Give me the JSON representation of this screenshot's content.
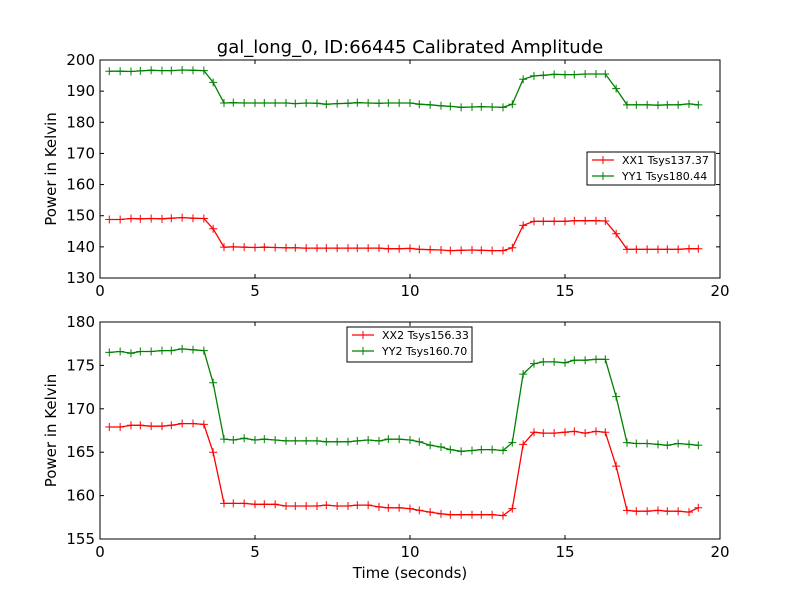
{
  "chart_data": [
    {
      "type": "line",
      "title": "gal_long_0, ID:66445 Calibrated Amplitude",
      "xlabel": "",
      "ylabel": "Power in Kelvin",
      "xlim": [
        0,
        20
      ],
      "ylim": [
        130,
        200
      ],
      "xticks": [
        "0",
        "5",
        "10",
        "15",
        "20"
      ],
      "yticks": [
        "130",
        "140",
        "150",
        "160",
        "170",
        "180",
        "190",
        "200"
      ],
      "legend_position": "right",
      "series": [
        {
          "name": "XX1 Tsys137.37",
          "color": "#ff0000",
          "x": [
            0.3,
            0.65,
            1.0,
            1.3,
            1.65,
            2.0,
            2.3,
            2.65,
            3.0,
            3.35,
            3.65,
            4.0,
            4.3,
            4.65,
            5.0,
            5.3,
            5.65,
            6.0,
            6.3,
            6.65,
            7.0,
            7.3,
            7.65,
            8.0,
            8.3,
            8.65,
            9.0,
            9.3,
            9.65,
            10.0,
            10.3,
            10.65,
            11.0,
            11.3,
            11.65,
            12.0,
            12.3,
            12.65,
            13.0,
            13.3,
            13.65,
            14.0,
            14.3,
            14.65,
            15.0,
            15.3,
            15.65,
            16.0,
            16.3,
            16.65,
            17.0,
            17.3,
            17.65,
            18.0,
            18.3,
            18.65,
            19.0,
            19.3
          ],
          "values": [
            148.8,
            148.8,
            149.1,
            149.0,
            149.1,
            149.0,
            149.2,
            149.4,
            149.2,
            149.1,
            145.8,
            139.9,
            140.0,
            139.9,
            139.8,
            139.9,
            139.8,
            139.7,
            139.7,
            139.6,
            139.6,
            139.6,
            139.6,
            139.6,
            139.6,
            139.6,
            139.6,
            139.4,
            139.4,
            139.5,
            139.2,
            139.1,
            139.0,
            138.8,
            138.9,
            139.0,
            138.9,
            138.8,
            138.8,
            139.7,
            146.9,
            148.2,
            148.2,
            148.2,
            148.2,
            148.4,
            148.4,
            148.4,
            148.3,
            144.2,
            139.2,
            139.2,
            139.2,
            139.2,
            139.2,
            139.2,
            139.4,
            139.4
          ]
        },
        {
          "name": "YY1 Tsys180.44",
          "color": "#008000",
          "x": [
            0.3,
            0.65,
            1.0,
            1.3,
            1.65,
            2.0,
            2.3,
            2.65,
            3.0,
            3.35,
            3.65,
            4.0,
            4.3,
            4.65,
            5.0,
            5.3,
            5.65,
            6.0,
            6.3,
            6.65,
            7.0,
            7.3,
            7.65,
            8.0,
            8.3,
            8.65,
            9.0,
            9.3,
            9.65,
            10.0,
            10.3,
            10.65,
            11.0,
            11.3,
            11.65,
            12.0,
            12.3,
            12.65,
            13.0,
            13.3,
            13.65,
            14.0,
            14.3,
            14.65,
            15.0,
            15.3,
            15.65,
            16.0,
            16.3,
            16.65,
            17.0,
            17.3,
            17.65,
            18.0,
            18.3,
            18.65,
            19.0,
            19.3
          ],
          "values": [
            196.4,
            196.4,
            196.3,
            196.5,
            196.7,
            196.6,
            196.6,
            196.8,
            196.7,
            196.6,
            192.8,
            186.2,
            186.3,
            186.2,
            186.2,
            186.2,
            186.2,
            186.2,
            186.0,
            186.2,
            186.1,
            185.8,
            186.0,
            186.1,
            186.3,
            186.2,
            186.1,
            186.2,
            186.2,
            186.2,
            185.8,
            185.6,
            185.3,
            185.1,
            184.8,
            184.9,
            185.0,
            184.9,
            184.8,
            185.8,
            193.8,
            194.9,
            195.1,
            195.4,
            195.3,
            195.3,
            195.5,
            195.5,
            195.5,
            190.8,
            185.6,
            185.6,
            185.6,
            185.5,
            185.6,
            185.6,
            185.9,
            185.6
          ]
        }
      ]
    },
    {
      "type": "line",
      "title": "",
      "xlabel": "Time (seconds)",
      "ylabel": "Power in Kelvin",
      "xlim": [
        0,
        20
      ],
      "ylim": [
        155,
        180
      ],
      "xticks": [
        "0",
        "5",
        "10",
        "15",
        "20"
      ],
      "yticks": [
        "155",
        "160",
        "165",
        "170",
        "175",
        "180"
      ],
      "legend_position": "top-center",
      "series": [
        {
          "name": "XX2 Tsys156.33",
          "color": "#ff0000",
          "x": [
            0.3,
            0.65,
            1.0,
            1.3,
            1.65,
            2.0,
            2.3,
            2.65,
            3.0,
            3.35,
            3.65,
            4.0,
            4.3,
            4.65,
            5.0,
            5.3,
            5.65,
            6.0,
            6.3,
            6.65,
            7.0,
            7.3,
            7.65,
            8.0,
            8.3,
            8.65,
            9.0,
            9.3,
            9.65,
            10.0,
            10.3,
            10.65,
            11.0,
            11.3,
            11.65,
            12.0,
            12.3,
            12.65,
            13.0,
            13.3,
            13.65,
            14.0,
            14.3,
            14.65,
            15.0,
            15.3,
            15.65,
            16.0,
            16.3,
            16.65,
            17.0,
            17.3,
            17.65,
            18.0,
            18.3,
            18.65,
            19.0,
            19.3
          ],
          "values": [
            167.9,
            167.9,
            168.1,
            168.1,
            168.0,
            168.0,
            168.1,
            168.3,
            168.3,
            168.2,
            165.0,
            159.1,
            159.1,
            159.1,
            159.0,
            159.0,
            159.0,
            158.8,
            158.8,
            158.8,
            158.8,
            158.9,
            158.8,
            158.8,
            158.9,
            158.9,
            158.7,
            158.6,
            158.6,
            158.5,
            158.3,
            158.1,
            157.9,
            157.8,
            157.8,
            157.8,
            157.8,
            157.8,
            157.7,
            158.5,
            165.9,
            167.3,
            167.2,
            167.2,
            167.3,
            167.4,
            167.2,
            167.4,
            167.3,
            163.4,
            158.3,
            158.2,
            158.2,
            158.3,
            158.2,
            158.2,
            158.1,
            158.6
          ]
        },
        {
          "name": "YY2 Tsys160.70",
          "color": "#008000",
          "x": [
            0.3,
            0.65,
            1.0,
            1.3,
            1.65,
            2.0,
            2.3,
            2.65,
            3.0,
            3.35,
            3.65,
            4.0,
            4.3,
            4.65,
            5.0,
            5.3,
            5.65,
            6.0,
            6.3,
            6.65,
            7.0,
            7.3,
            7.65,
            8.0,
            8.3,
            8.65,
            9.0,
            9.3,
            9.65,
            10.0,
            10.3,
            10.65,
            11.0,
            11.3,
            11.65,
            12.0,
            12.3,
            12.65,
            13.0,
            13.3,
            13.65,
            14.0,
            14.3,
            14.65,
            15.0,
            15.3,
            15.65,
            16.0,
            16.3,
            16.65,
            17.0,
            17.3,
            17.65,
            18.0,
            18.3,
            18.65,
            19.0,
            19.3
          ],
          "values": [
            176.5,
            176.6,
            176.4,
            176.6,
            176.6,
            176.7,
            176.7,
            176.9,
            176.8,
            176.7,
            173.0,
            166.5,
            166.4,
            166.6,
            166.4,
            166.5,
            166.4,
            166.3,
            166.3,
            166.3,
            166.3,
            166.2,
            166.2,
            166.2,
            166.3,
            166.4,
            166.3,
            166.5,
            166.5,
            166.4,
            166.2,
            165.8,
            165.6,
            165.3,
            165.1,
            165.2,
            165.3,
            165.3,
            165.2,
            166.1,
            174.0,
            175.2,
            175.4,
            175.4,
            175.3,
            175.6,
            175.6,
            175.7,
            175.7,
            171.4,
            166.1,
            166.0,
            166.0,
            165.9,
            165.8,
            166.0,
            165.9,
            165.8
          ]
        }
      ]
    }
  ]
}
